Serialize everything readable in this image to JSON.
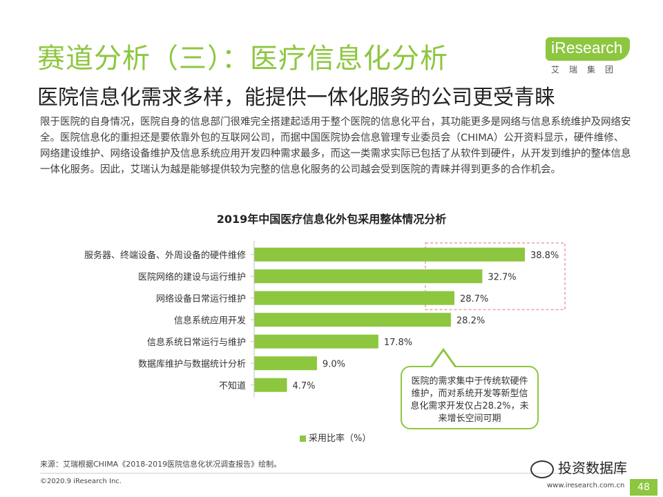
{
  "header": {
    "title": "赛道分析（三）：医疗信息化分析",
    "subtitle": "医院信息化需求多样，能提供一体化服务的公司更受青睐",
    "logo_text": "iResearch",
    "logo_sub": "艾瑞集团"
  },
  "intro": "限于医院的自身情况，医院自身的信息部门很难完全搭建起适用于整个医院的信息化平台，其功能更多是网络与信息系统维护及网络安全。医院信息化的重担还是要依靠外包的互联网公司，而据中国医院协会信息管理专业委员会（CHIMA）公开资料显示，硬件维修、网络建设维护、网络设备维护及信息系统应用开发四种需求最多，而这一类需求实际已包括了从软件到硬件，从开发到维护的整体信息一体化服务。因此，艾瑞认为越是能够提供较为完整的信息化服务的公司越会受到医院的青睐并得到更多的合作机会。",
  "chart_data": {
    "type": "bar",
    "orientation": "horizontal",
    "title": "2019年中国医疗信息化外包采用整体情况分析",
    "categories": [
      "服务器、终端设备、外周设备的硬件维修",
      "医院网络的建设与运行维护",
      "网络设备日常运行维护",
      "信息系统应用开发",
      "信息系统日常运行与维护",
      "数据库维护与数据统计分析",
      "不知道"
    ],
    "series": [
      {
        "name": "采用比率（%）",
        "values": [
          38.8,
          32.7,
          28.7,
          28.2,
          17.8,
          9.0,
          4.7
        ],
        "labels": [
          "38.8%",
          "32.7%",
          "28.7%",
          "28.2%",
          "17.8%",
          "9.0%",
          "4.7%"
        ]
      }
    ],
    "xlim": [
      0,
      38.8
    ],
    "highlight_top_n": 3,
    "colors": {
      "bar": "#8dc63f",
      "axis": "#bfbfbf",
      "highlight": "#e8a0a8"
    }
  },
  "legend": {
    "label": "采用比率（%）"
  },
  "callout": {
    "text": "医院的需求集中于传统软硬件维护，而对系统开发等新型信息化需求开发仅占28.2%，未来增长空间可期"
  },
  "footer": {
    "source": "来源：艾瑞根据CHIMA《2018-2019医院信息化状况调查报告》绘制。",
    "copyright": "©2020.9 iResearch Inc.",
    "site": "www.iresearch.com.cn",
    "watermark": "投资数据库",
    "page": "48"
  },
  "colors": {
    "brand": "#8dc63f"
  }
}
